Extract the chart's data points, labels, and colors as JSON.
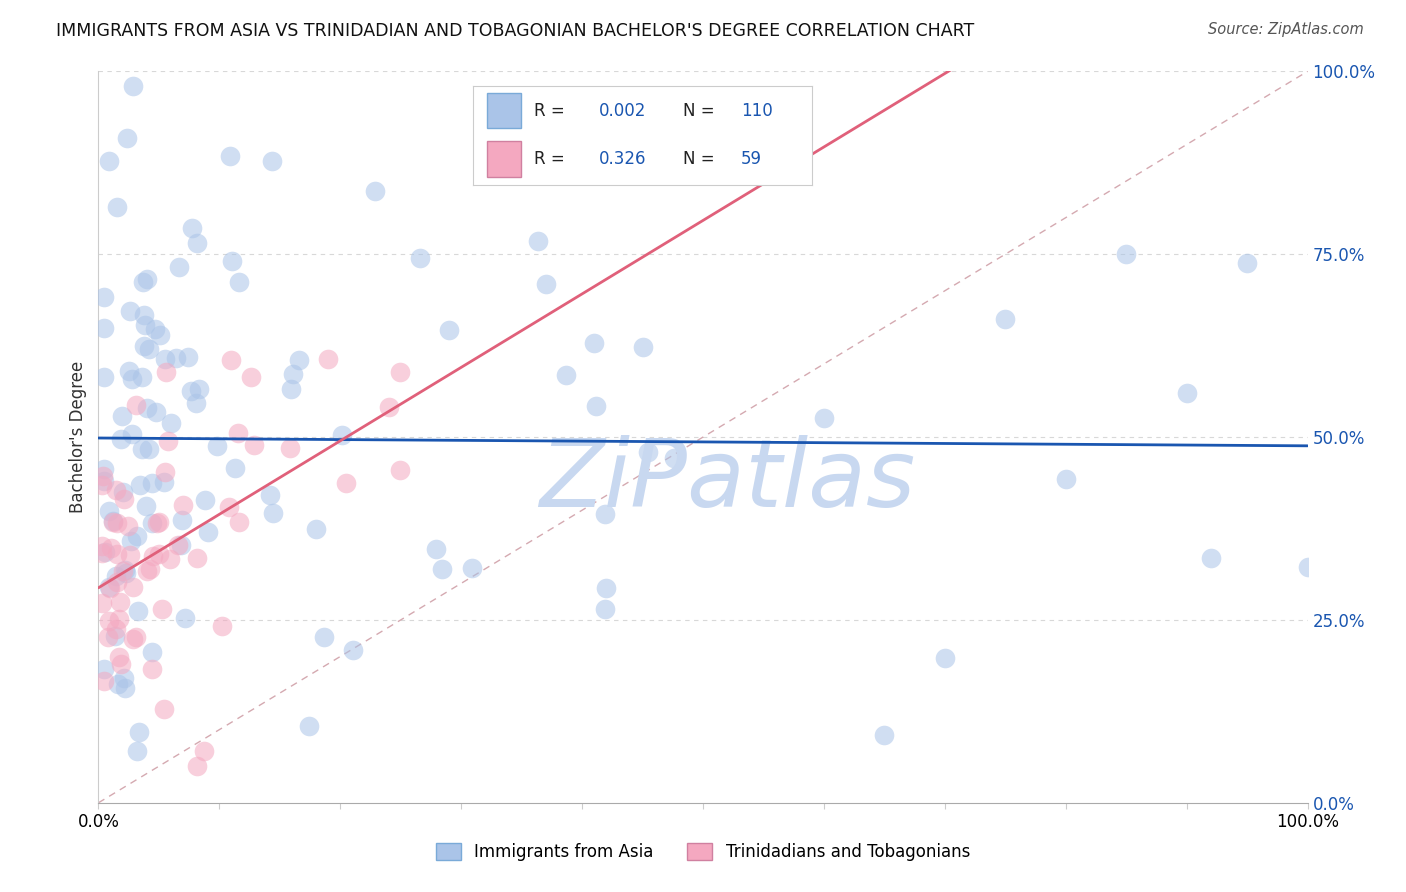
{
  "title": "IMMIGRANTS FROM ASIA VS TRINIDADIAN AND TOBAGONIAN BACHELOR'S DEGREE CORRELATION CHART",
  "source": "Source: ZipAtlas.com",
  "ylabel": "Bachelor's Degree",
  "r_asia": 0.002,
  "n_asia": 110,
  "r_tnt": 0.326,
  "n_tnt": 59,
  "color_asia": "#aac4e8",
  "color_tnt": "#f4a8c0",
  "line_asia": "#1a56b0",
  "line_tnt": "#e0607a",
  "line_diag_color": "#d0a0a8",
  "watermark": "ZiPatlas",
  "watermark_color": "#c8d8f0",
  "xlim": [
    0,
    100
  ],
  "ylim": [
    0,
    100
  ],
  "ytick_vals": [
    0,
    25,
    50,
    75,
    100
  ],
  "background_color": "#ffffff",
  "grid_color": "#d8d8d8",
  "hline_y": 50.0,
  "hline_color": "#1a56b0",
  "legend_label_asia": "Immigrants from Asia",
  "legend_label_tnt": "Trinidadians and Tobagonians"
}
